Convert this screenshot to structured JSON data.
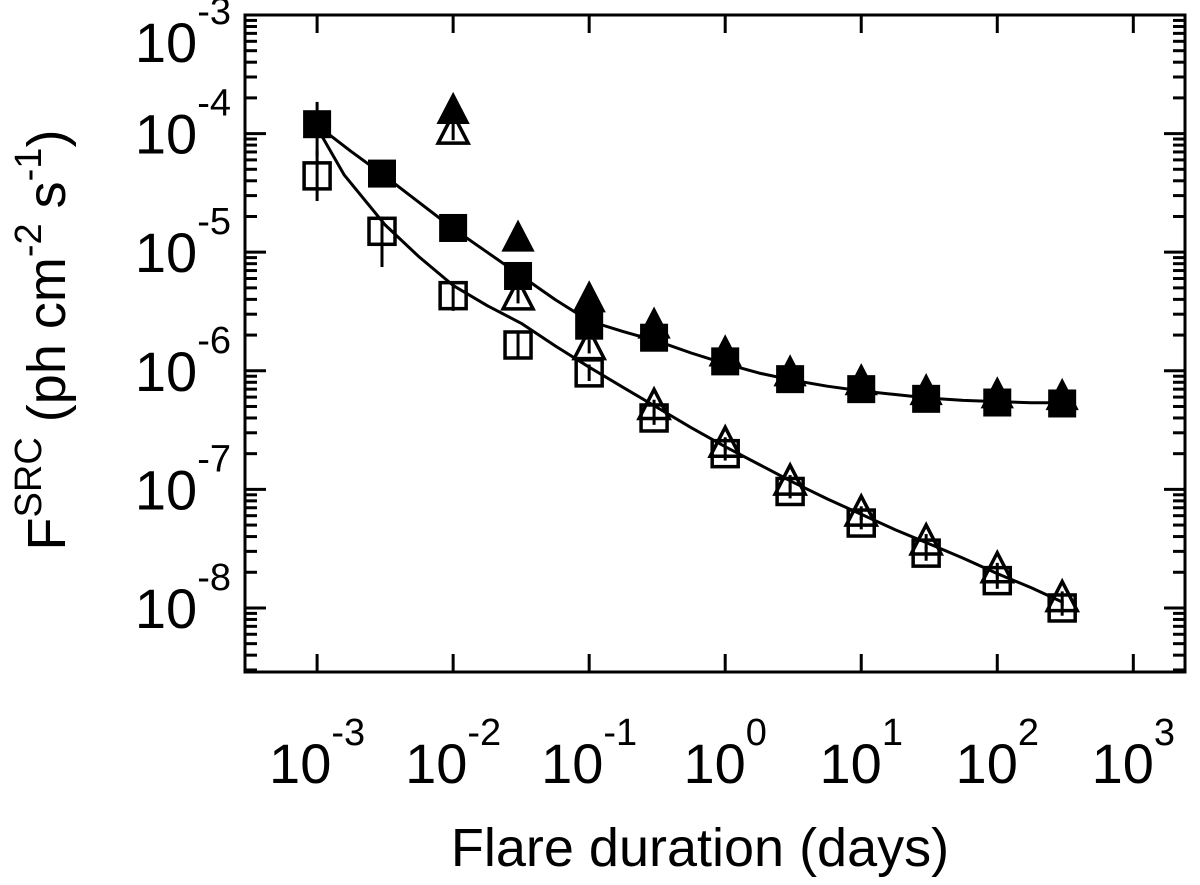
{
  "chart_data": {
    "type": "scatter",
    "title": "",
    "xlabel": "Flare duration (days)",
    "ylabel_plain": "F^SRC (ph cm^-2 s^-1)",
    "ylabel_parts": [
      {
        "text": "F",
        "sup": false
      },
      {
        "text": "SRC",
        "sup": true
      },
      {
        "text": " (ph cm",
        "sup": false
      },
      {
        "text": "-2",
        "sup": true
      },
      {
        "text": " s",
        "sup": false
      },
      {
        "text": "-1",
        "sup": true
      },
      {
        "text": ")",
        "sup": false
      }
    ],
    "x_scale": "log",
    "y_scale": "log",
    "x_range_log10": [
      -3.53,
      3.38
    ],
    "y_range_log10": [
      -8.54,
      -3
    ],
    "x_tick_exponents": [
      -3,
      -2,
      -1,
      0,
      1,
      2,
      3
    ],
    "y_tick_exponents": [
      -3,
      -4,
      -5,
      -6,
      -7,
      -8
    ],
    "grid": false,
    "legend": "none",
    "colors": {
      "foreground": "#000000",
      "background": "#ffffff"
    },
    "series": [
      {
        "name": "filled-squares",
        "marker": "square",
        "style": "filled",
        "x": [
          0.001,
          0.003,
          0.01,
          0.03,
          0.1,
          0.3,
          1,
          3,
          10,
          30,
          100,
          300
        ],
        "y": [
          0.00012,
          4.6e-05,
          1.6e-05,
          6.3e-06,
          2.4e-06,
          1.9e-06,
          1.2e-06,
          8.5e-07,
          7e-07,
          5.8e-07,
          5.4e-07,
          5.3e-07
        ],
        "yerr": [
          [
            6.5e-05,
            0.000185
          ],
          null,
          null,
          null,
          null,
          null,
          null,
          null,
          null,
          null,
          null,
          null
        ]
      },
      {
        "name": "filled-triangles",
        "marker": "triangle",
        "style": "filled",
        "x": [
          0.01,
          0.03,
          0.1,
          0.3,
          1,
          3,
          10,
          30,
          100,
          300
        ],
        "y": [
          0.000155,
          1.3e-05,
          4e-06,
          2.4e-06,
          1.4e-06,
          9.5e-07,
          8e-07,
          6.6e-07,
          6.2e-07,
          6e-07
        ],
        "yerr": [
          null,
          null,
          null,
          null,
          null,
          null,
          null,
          null,
          null,
          null
        ]
      },
      {
        "name": "open-squares",
        "marker": "square",
        "style": "open",
        "x": [
          0.001,
          0.003,
          0.01,
          0.03,
          0.1,
          0.3,
          1,
          3,
          10,
          30,
          100,
          300
        ],
        "y": [
          4.4e-05,
          1.5e-05,
          4.3e-06,
          1.65e-06,
          9.6e-07,
          4e-07,
          2e-07,
          9.6e-08,
          5.2e-08,
          2.9e-08,
          1.7e-08,
          1e-08
        ],
        "yerr": [
          [
            2.7e-05,
            7.2e-05
          ],
          [
            7.5e-06,
            2e-05
          ],
          [
            3.2e-06,
            5.4e-06
          ],
          [
            1.3e-06,
            2.1e-06
          ],
          [
            8.2e-07,
            1.13e-06
          ],
          [
            3.5e-07,
            4.6e-07
          ],
          [
            1.75e-07,
            2.3e-07
          ],
          [
            8.4e-08,
            1.1e-07
          ],
          [
            4.6e-08,
            5.9e-08
          ],
          [
            2.5e-08,
            3.3e-08
          ],
          [
            1.45e-08,
            2e-08
          ],
          [
            8.6e-09,
            1.17e-08
          ]
        ]
      },
      {
        "name": "open-triangles",
        "marker": "triangle",
        "style": "open",
        "x": [
          0.01,
          0.03,
          0.1,
          0.3,
          1,
          3,
          10,
          30,
          100,
          300
        ],
        "y": [
          0.000105,
          4.2e-06,
          1.6e-06,
          5e-07,
          2.4e-07,
          1.15e-07,
          6.3e-08,
          3.6e-08,
          2.1e-08,
          1.2e-08
        ],
        "yerr": [
          [
            8.8e-05,
            0.000124
          ],
          [
            3.7e-06,
            4.8e-06
          ],
          [
            1.4e-06,
            1.83e-06
          ],
          [
            4.4e-07,
            5.7e-07
          ],
          [
            2.1e-07,
            2.75e-07
          ],
          [
            1e-07,
            1.32e-07
          ],
          [
            5.5e-08,
            7.2e-08
          ],
          [
            3.1e-08,
            4.2e-08
          ],
          [
            1.8e-08,
            2.4e-08
          ],
          [
            1.04e-08,
            1.38e-08
          ]
        ]
      }
    ],
    "fit_lines": [
      {
        "name": "filled-series-fit",
        "points_log10": [
          [
            -3,
            -3.93
          ],
          [
            -2.75,
            -4.15
          ],
          [
            -2.5,
            -4.36
          ],
          [
            -2.25,
            -4.58
          ],
          [
            -2,
            -4.8
          ],
          [
            -1.75,
            -5.0
          ],
          [
            -1.5,
            -5.2
          ],
          [
            -1.25,
            -5.4
          ],
          [
            -1,
            -5.58
          ],
          [
            -0.75,
            -5.67
          ],
          [
            -0.5,
            -5.75
          ],
          [
            -0.25,
            -5.85
          ],
          [
            0,
            -5.94
          ],
          [
            0.25,
            -6.02
          ],
          [
            0.5,
            -6.08
          ],
          [
            0.75,
            -6.13
          ],
          [
            1,
            -6.17
          ],
          [
            1.25,
            -6.2
          ],
          [
            1.5,
            -6.23
          ],
          [
            1.75,
            -6.25
          ],
          [
            2,
            -6.26
          ],
          [
            2.25,
            -6.27
          ],
          [
            2.477,
            -6.27
          ]
        ]
      },
      {
        "name": "open-series-fit",
        "points_log10": [
          [
            -3,
            -3.95
          ],
          [
            -2.8,
            -4.35
          ],
          [
            -2.5,
            -4.77
          ],
          [
            -2.25,
            -5.04
          ],
          [
            -2,
            -5.28
          ],
          [
            -1.75,
            -5.45
          ],
          [
            -1.5,
            -5.6
          ],
          [
            -1.25,
            -5.79
          ],
          [
            -1,
            -5.97
          ],
          [
            -0.75,
            -6.14
          ],
          [
            -0.5,
            -6.31
          ],
          [
            -0.25,
            -6.48
          ],
          [
            0,
            -6.64
          ],
          [
            0.25,
            -6.79
          ],
          [
            0.5,
            -6.94
          ],
          [
            0.75,
            -7.08
          ],
          [
            1,
            -7.21
          ],
          [
            1.25,
            -7.34
          ],
          [
            1.5,
            -7.46
          ],
          [
            1.75,
            -7.58
          ],
          [
            2,
            -7.71
          ],
          [
            2.25,
            -7.83
          ],
          [
            2.477,
            -7.95
          ]
        ]
      }
    ]
  }
}
